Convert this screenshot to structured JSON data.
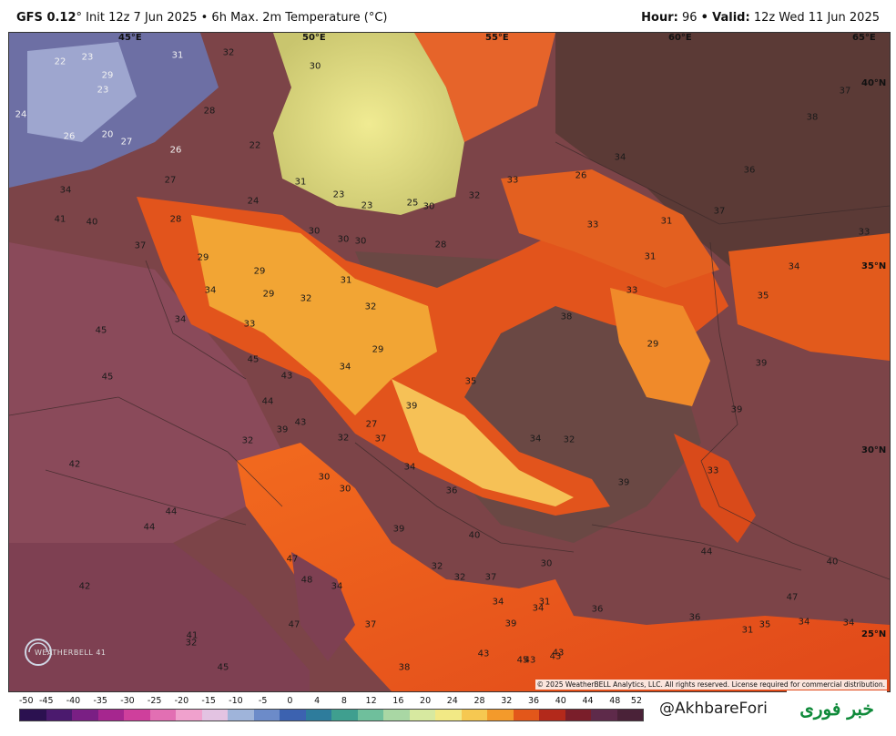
{
  "header": {
    "model": "GFS 0.12",
    "init_text": "° Init 12z 7 Jun 2025 • 6h Max. 2m Temperature (°C)",
    "hour_label": "Hour:",
    "hour_value": "96",
    "separator": "•",
    "valid_label": "Valid:",
    "valid_value": "12z Wed 11 Jun 2025"
  },
  "map": {
    "lon_labels": [
      "45°E",
      "50°E",
      "55°E",
      "60°E",
      "65°E"
    ],
    "lat_labels": [
      "40°N",
      "35°N",
      "30°N",
      "25°N"
    ],
    "temperature_labels": [
      "22",
      "23",
      "31",
      "32",
      "30",
      "29",
      "28",
      "24",
      "23",
      "20",
      "26",
      "27",
      "26",
      "22",
      "27",
      "34",
      "41",
      "40",
      "37",
      "31",
      "28",
      "24",
      "23",
      "23",
      "25",
      "30",
      "32",
      "33",
      "26",
      "34",
      "37",
      "38",
      "36",
      "37",
      "33",
      "31",
      "31",
      "33",
      "34",
      "35",
      "29",
      "29",
      "30",
      "30",
      "30",
      "28",
      "29",
      "34",
      "31",
      "32",
      "34",
      "33",
      "32",
      "29",
      "34",
      "38",
      "33",
      "29",
      "39",
      "39",
      "45",
      "45",
      "45",
      "43",
      "44",
      "43",
      "39",
      "32",
      "37",
      "39",
      "27",
      "30",
      "35",
      "34",
      "32",
      "34",
      "36",
      "39",
      "33",
      "42",
      "44",
      "44",
      "32",
      "30",
      "40",
      "39",
      "44",
      "40",
      "47",
      "48",
      "32",
      "32",
      "37",
      "34",
      "34",
      "42",
      "47",
      "47",
      "37",
      "34",
      "34",
      "36",
      "36",
      "31",
      "35",
      "34",
      "32",
      "41",
      "43",
      "43",
      "45",
      "38",
      "43",
      "45",
      "43",
      "39",
      "30",
      "31"
    ],
    "copyright": "© 2025 WeatherBELL Analytics, LLC. All rights reserved. License required for commercial distribution.",
    "logo_text": "WEATHERBELL",
    "logo_value": "41"
  },
  "colorbar": {
    "ticks": [
      "-50",
      "-45",
      "-40",
      "-35",
      "-30",
      "-25",
      "-20",
      "-15",
      "-10",
      "-5",
      "0",
      "4",
      "8",
      "12",
      "16",
      "20",
      "24",
      "28",
      "32",
      "36",
      "40",
      "44",
      "48",
      "52"
    ],
    "colors": [
      "#2b1150",
      "#4b1a6e",
      "#7a1f84",
      "#a6268f",
      "#cf3f9c",
      "#e26fb3",
      "#f0a1cd",
      "#e3c3e2",
      "#9fb4da",
      "#6c8bc9",
      "#3c62b0",
      "#2e7c9c",
      "#3f9f8f",
      "#6fbf9c",
      "#a9d7a4",
      "#d7e9a0",
      "#f2e985",
      "#f6c851",
      "#f39a2b",
      "#e3571a",
      "#b3291b",
      "#7a1e2a",
      "#5e2a4a",
      "#4a2238"
    ]
  },
  "footer": {
    "handle": "@AkhbareFori",
    "badge_text": "خبر فوری"
  }
}
